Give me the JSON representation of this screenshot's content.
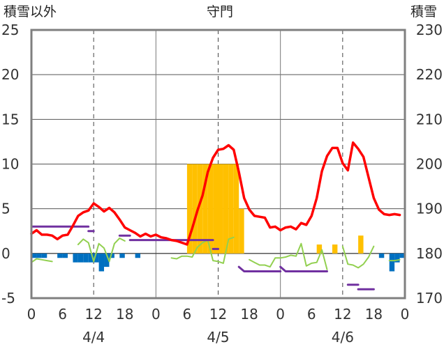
{
  "labels": {
    "left_axis_title": "積雪以外",
    "title": "守門",
    "right_axis_title": "積雪"
  },
  "chart_data": {
    "type": "line",
    "title": "守門",
    "y_left_label": "積雪以外",
    "y_right_label": "積雪",
    "ylim_left": [
      -5,
      25
    ],
    "ylim_right": [
      170,
      230
    ],
    "y_left_ticks": [
      -5,
      0,
      5,
      10,
      15,
      20,
      25
    ],
    "y_right_ticks": [
      170,
      180,
      190,
      200,
      210,
      220,
      230
    ],
    "x_range_hours": [
      0,
      72
    ],
    "x_tick_hours": [
      0,
      6,
      12,
      18,
      24,
      30,
      36,
      42,
      48,
      54,
      60,
      66,
      72
    ],
    "x_tick_labels": [
      "0",
      "6",
      "12",
      "18",
      "0",
      "6",
      "12",
      "18",
      "0",
      "6",
      "12",
      "18",
      "0"
    ],
    "date_labels": [
      {
        "hour": 12,
        "text": "4/4"
      },
      {
        "hour": 36,
        "text": "4/5"
      },
      {
        "hour": 60,
        "text": "4/6"
      }
    ],
    "grid_x_hours": [
      12,
      24,
      36,
      48,
      60
    ],
    "grid_y_left": [
      5,
      10,
      15,
      20
    ],
    "colors": {
      "temperature": "#ff0000",
      "snow_depth": "#7030a0",
      "precipitation": "#ffc000",
      "blue_bars": "#0070c0",
      "green_line": "#92d050"
    },
    "series": [
      {
        "key": "temperature",
        "axis": "left",
        "x": [
          0,
          1,
          2,
          3,
          4,
          5,
          6,
          7,
          8,
          9,
          10,
          11,
          12,
          13,
          14,
          15,
          16,
          17,
          18,
          19,
          20,
          21,
          22,
          23,
          24,
          25,
          26,
          27,
          28,
          29,
          30,
          31,
          32,
          33,
          34,
          35,
          36,
          37,
          38,
          39,
          40,
          41,
          42,
          43,
          44,
          45,
          46,
          47,
          48,
          49,
          50,
          51,
          52,
          53,
          54,
          55,
          56,
          57,
          58,
          59,
          60,
          61,
          62,
          63,
          64,
          65,
          66,
          67,
          68,
          69,
          70,
          71
        ],
        "values": [
          2.2,
          2.6,
          2.1,
          2.1,
          2.0,
          1.6,
          2.0,
          2.1,
          3.1,
          4.2,
          4.6,
          4.8,
          5.6,
          5.2,
          4.7,
          5.1,
          4.6,
          3.8,
          2.9,
          2.6,
          2.3,
          1.9,
          2.2,
          1.9,
          2.1,
          1.8,
          1.7,
          1.5,
          1.4,
          1.2,
          1.0,
          2.8,
          4.8,
          6.5,
          9.1,
          10.7,
          11.6,
          11.7,
          12.1,
          11.6,
          9.1,
          6.2,
          4.9,
          4.2,
          4.1,
          4.0,
          2.9,
          3.0,
          2.6,
          2.9,
          3.0,
          2.7,
          3.4,
          3.2,
          4.2,
          6.2,
          9.2,
          10.9,
          11.8,
          11.8,
          10.1,
          9.3,
          12.4,
          11.7,
          10.8,
          8.5,
          6.2,
          4.9,
          4.4,
          4.3,
          4.4,
          4.3
        ]
      },
      {
        "key": "snow_depth",
        "axis": "right",
        "segments": [
          {
            "x": [
              0,
              11
            ],
            "values": [
              186,
              186
            ]
          },
          {
            "x": [
              11,
              12
            ],
            "values": [
              185,
              185
            ]
          },
          {
            "x": [
              17,
              19
            ],
            "values": [
              184,
              184
            ]
          },
          {
            "x": [
              19,
              35
            ],
            "values": [
              183,
              183
            ]
          },
          {
            "x": [
              35,
              36
            ],
            "values": [
              181,
              181
            ]
          },
          {
            "x": [
              40,
              41,
              48
            ],
            "values": [
              177,
              176,
              176
            ]
          },
          {
            "x": [
              48,
              49,
              57
            ],
            "values": [
              177,
              176,
              176
            ]
          },
          {
            "x": [
              61,
              63
            ],
            "values": [
              173,
              173
            ]
          },
          {
            "x": [
              63,
              66
            ],
            "values": [
              172,
              172
            ]
          },
          {
            "x": [
              66,
              72
            ],
            "values": [
              170,
              170
            ]
          }
        ]
      },
      {
        "key": "precipitation",
        "axis": "left",
        "bars": [
          {
            "x": 30.5,
            "value": 10
          },
          {
            "x": 31.5,
            "value": 10
          },
          {
            "x": 32.5,
            "value": 10
          },
          {
            "x": 33.5,
            "value": 10
          },
          {
            "x": 34.5,
            "value": 10
          },
          {
            "x": 35.5,
            "value": 10
          },
          {
            "x": 36.5,
            "value": 10
          },
          {
            "x": 37.5,
            "value": 10
          },
          {
            "x": 38.5,
            "value": 10
          },
          {
            "x": 39.5,
            "value": 10
          },
          {
            "x": 40.5,
            "value": 5
          },
          {
            "x": 55.5,
            "value": 1
          },
          {
            "x": 58.5,
            "value": 1
          },
          {
            "x": 63.5,
            "value": 2
          }
        ]
      },
      {
        "key": "blue_bars",
        "axis": "left",
        "bars": [
          {
            "x": 0.5,
            "value": -0.5
          },
          {
            "x": 1.5,
            "value": -0.5
          },
          {
            "x": 2.5,
            "value": -0.5
          },
          {
            "x": 5.5,
            "value": -0.5
          },
          {
            "x": 6.5,
            "value": -0.5
          },
          {
            "x": 8.5,
            "value": -1
          },
          {
            "x": 9.5,
            "value": -1
          },
          {
            "x": 10.5,
            "value": -1
          },
          {
            "x": 11.5,
            "value": -1
          },
          {
            "x": 12.5,
            "value": -1
          },
          {
            "x": 13.5,
            "value": -2
          },
          {
            "x": 14.5,
            "value": -1.5
          },
          {
            "x": 15.5,
            "value": -0.5
          },
          {
            "x": 17.5,
            "value": -0.5
          },
          {
            "x": 20.5,
            "value": -0.5
          },
          {
            "x": 67.5,
            "value": -0.5
          },
          {
            "x": 69.5,
            "value": -2
          },
          {
            "x": 70.5,
            "value": -1
          },
          {
            "x": 71.5,
            "value": -0.5
          }
        ]
      },
      {
        "key": "green_line",
        "axis": "left",
        "segments": [
          {
            "x": [
              0,
              1,
              2,
              3,
              4
            ],
            "values": [
              -1.0,
              -0.6,
              -0.7,
              -0.8,
              -0.9
            ]
          },
          {
            "x": [
              9,
              10,
              11,
              12,
              13,
              14,
              15,
              16,
              17,
              18
            ],
            "values": [
              1.0,
              1.6,
              1.2,
              -0.9,
              1.1,
              0.6,
              -0.9,
              1.1,
              1.7,
              1.4
            ]
          },
          {
            "x": [
              27,
              28,
              29,
              30,
              31,
              32,
              33,
              34,
              35,
              36,
              37,
              38,
              39
            ],
            "values": [
              -0.5,
              -0.6,
              -0.3,
              -0.3,
              -0.4,
              0.7,
              1.2,
              1.5,
              -0.8,
              -0.9,
              -1.1,
              1.6,
              1.8
            ]
          },
          {
            "x": [
              42,
              43,
              44,
              45,
              46,
              47,
              48,
              49,
              50,
              51,
              52,
              53,
              54,
              55,
              56,
              57
            ],
            "values": [
              -0.7,
              -1.0,
              -1.3,
              -1.3,
              -1.5,
              -0.5,
              -0.5,
              -0.4,
              -0.2,
              -0.3,
              1.1,
              -1.4,
              -1.1,
              -1.0,
              0.4,
              -1.8
            ]
          },
          {
            "x": [
              60,
              61,
              62,
              63,
              64,
              65,
              66
            ],
            "values": [
              0.8,
              -1.2,
              -1.3,
              -1.6,
              -1.2,
              -0.4,
              0.8
            ]
          },
          {
            "x": [
              69,
              70,
              71
            ],
            "values": [
              -0.8,
              -0.8,
              -0.7
            ]
          }
        ]
      }
    ]
  }
}
